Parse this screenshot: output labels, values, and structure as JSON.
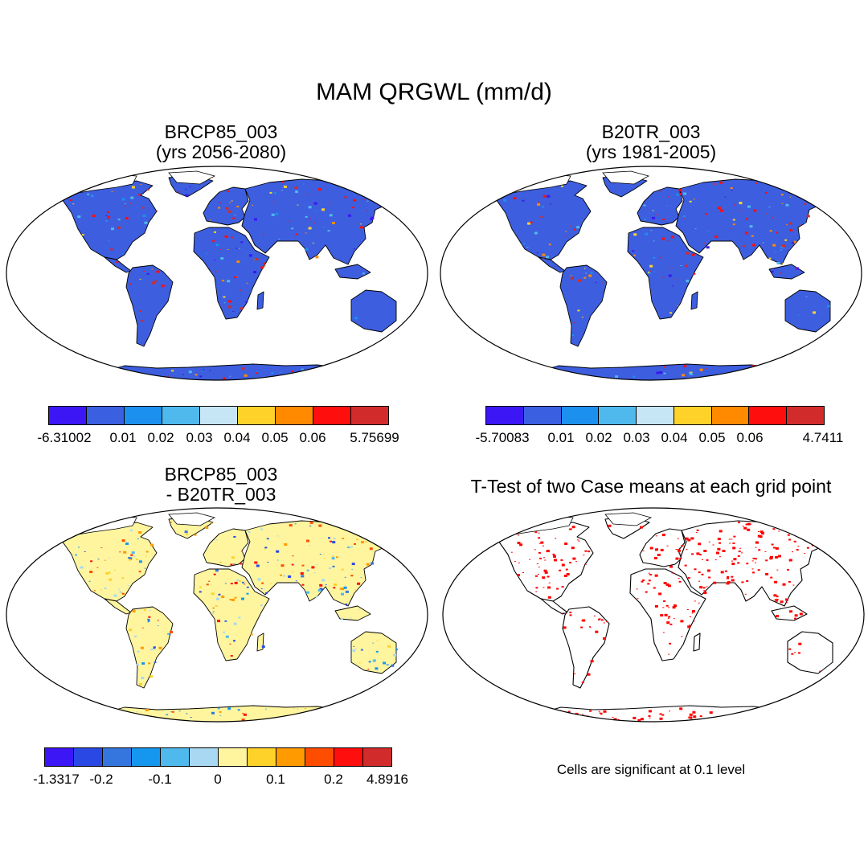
{
  "title": "MAM QRGWL (mm/d)",
  "panels": [
    {
      "title_line1": "BRCP85_003",
      "title_line2": "(yrs 2056-2080)",
      "land_color": "#3d5ede",
      "colorbar": {
        "colors": [
          "#3c16f4",
          "#3a5fe0",
          "#1c90ee",
          "#4fb9ee",
          "#c6e6f5",
          "#ffd22a",
          "#ff8a00",
          "#ff0e0e",
          "#d22b2b"
        ],
        "labels": [
          "-6.31002",
          "0.01",
          "0.02",
          "0.03",
          "0.04",
          "0.05",
          "0.06",
          "5.75699"
        ]
      }
    },
    {
      "title_line1": "B20TR_003",
      "title_line2": "(yrs 1981-2005)",
      "land_color": "#3d5ede",
      "colorbar": {
        "colors": [
          "#3c16f4",
          "#3a5fe0",
          "#1c90ee",
          "#4fb9ee",
          "#c6e6f5",
          "#ffd22a",
          "#ff8a00",
          "#ff0e0e",
          "#d22b2b"
        ],
        "labels": [
          "-5.70083",
          "0.01",
          "0.02",
          "0.03",
          "0.04",
          "0.05",
          "0.06",
          "4.7411"
        ]
      }
    },
    {
      "title_line1": "BRCP85_003",
      "title_line2": "- B20TR_003",
      "land_color": "#fff59f",
      "colorbar": {
        "colors": [
          "#3c16f4",
          "#2a49e4",
          "#3576de",
          "#1597ef",
          "#4fb9ee",
          "#a9d8f2",
          "#fff59f",
          "#ffd22a",
          "#ff9a00",
          "#ff4d00",
          "#ff0e0e",
          "#d22b2b"
        ],
        "labels": [
          "-1.3317",
          "-0.2",
          "-0.1",
          "0",
          "0.1",
          "0.2",
          "4.8916"
        ]
      }
    },
    {
      "title_line1": "T-Test of two Case means at each grid point",
      "land_color": "#ffffff",
      "signif_color": "#ff0000",
      "note": "Cells are significant at 0.1 level"
    }
  ]
}
